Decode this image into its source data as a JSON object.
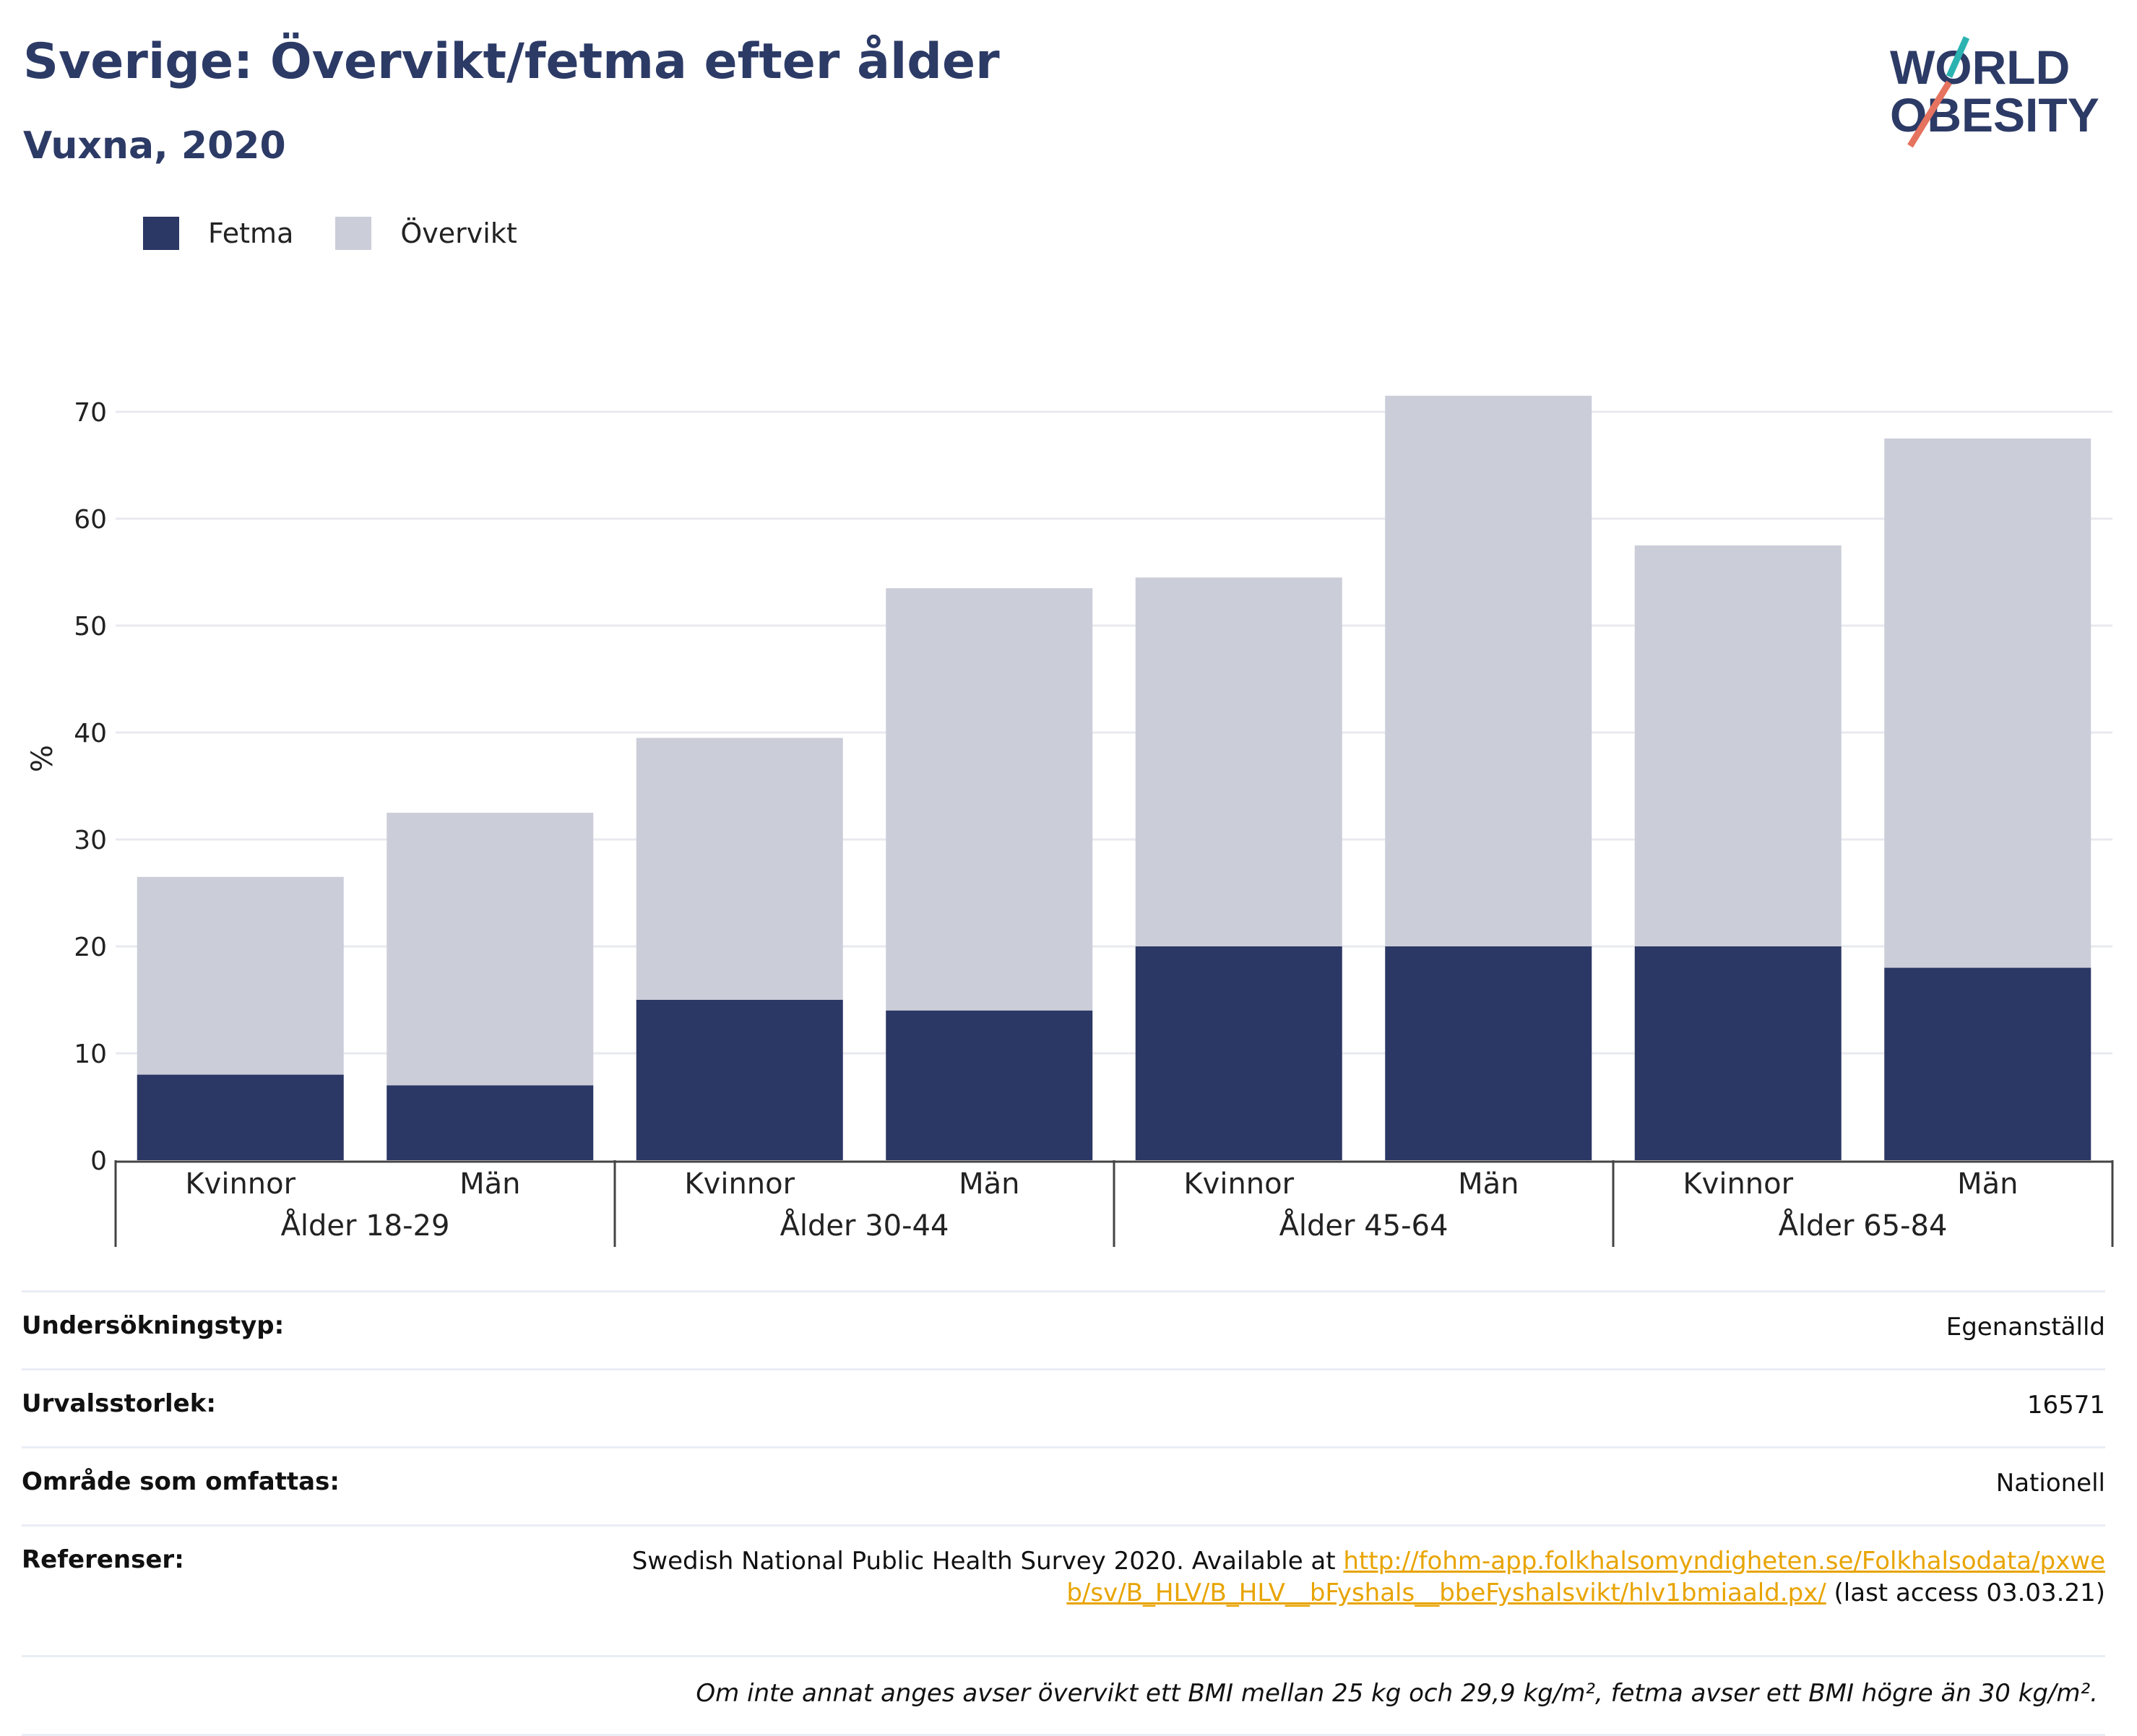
{
  "header": {
    "title": "Sverige: Övervikt/fetma efter ålder",
    "subtitle": "Vuxna, 2020",
    "logo_line1": "WORLD",
    "logo_line2": "OBESITY"
  },
  "colors": {
    "fetma": "#2b3764",
    "overvikt": "#cbcdd9",
    "title": "#2c3a66",
    "link": "#e8a400",
    "logo_teal": "#2bb3b1",
    "logo_salmon": "#e5735f"
  },
  "chart_data": {
    "type": "bar",
    "stacked": true,
    "title": "Sverige: Övervikt/fetma efter ålder",
    "subtitle": "Vuxna, 2020",
    "ylabel": "%",
    "ylim": [
      0,
      72
    ],
    "yticks": [
      0,
      10,
      20,
      30,
      40,
      50,
      60,
      70
    ],
    "grid": true,
    "legend_position": "top-left",
    "groups": [
      "Ålder 18-29",
      "Ålder 30-44",
      "Ålder 45-64",
      "Ålder 65-84"
    ],
    "categories": [
      "Kvinnor",
      "Män",
      "Kvinnor",
      "Män",
      "Kvinnor",
      "Män",
      "Kvinnor",
      "Män"
    ],
    "series": [
      {
        "name": "Fetma",
        "values": [
          8,
          7,
          15,
          14,
          20,
          20,
          20,
          18
        ]
      },
      {
        "name": "Övervikt",
        "values": [
          18.5,
          25.5,
          24.5,
          39.5,
          34.5,
          51.5,
          37.5,
          49.5
        ]
      }
    ],
    "totals": [
      26.5,
      32.5,
      39.5,
      53.5,
      54.5,
      71.5,
      57.5,
      67.5
    ]
  },
  "info": {
    "survey_type_label": "Undersökningstyp:",
    "survey_type_value": "Egenanställd",
    "sample_label": "Urvalsstorlek:",
    "sample_value": "16571",
    "coverage_label": "Område som omfattas:",
    "coverage_value": "Nationell",
    "references_label": "Referenser:",
    "references_text": "Swedish National Public Health Survey 2020. Available at",
    "references_link": "http://fohm-app.folkhalsomyndigheten.se/Folkhalsodata/pxweb/sv/B_HLV/B_HLV__bFyshals__bbeFyshalsvikt/hlv1bmiaald.px/",
    "references_suffix": "(last access 03.03.21)",
    "note": "Om inte annat anges avser övervikt ett BMI mellan 25 kg och 29,9 kg/m², fetma avser ett BMI högre än 30 kg/m²."
  }
}
